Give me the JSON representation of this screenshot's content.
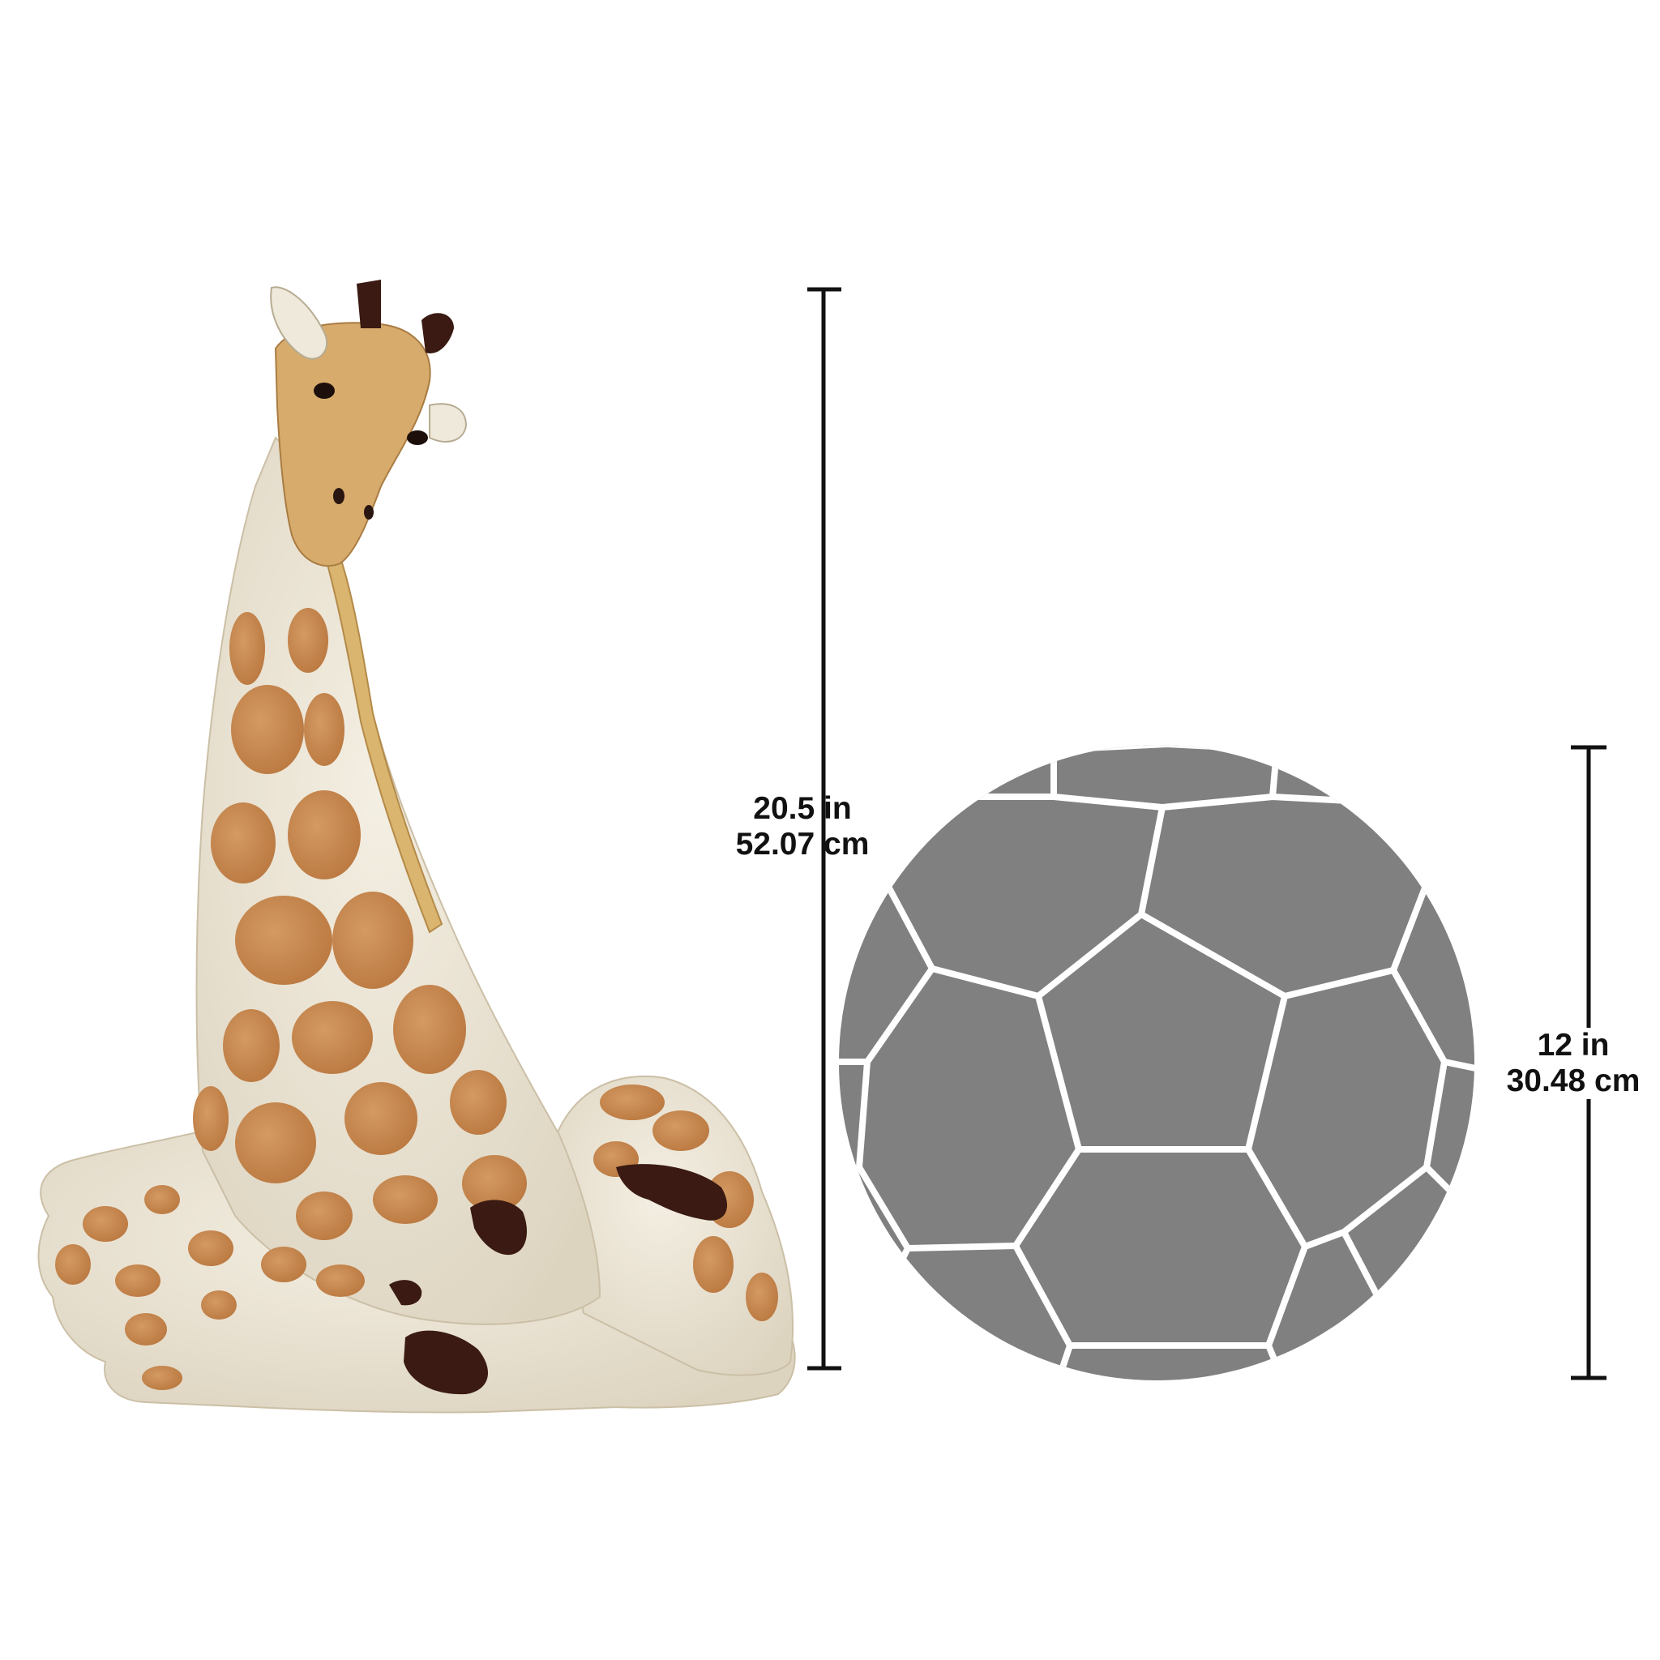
{
  "giraffe_dimension": {
    "imperial": "20.5 in",
    "metric": "52.07 cm"
  },
  "ball_dimension": {
    "imperial": "12 in",
    "metric": "30.48 cm"
  },
  "colors": {
    "background": "#ffffff",
    "ink": "#111111",
    "ball_panel": "#808080",
    "ball_seam": "#ffffff",
    "giraffe_base": "#ece6d6",
    "giraffe_spot": "#c98b52",
    "giraffe_dark": "#3a1a12",
    "giraffe_face": "#d6ab6c"
  },
  "icons": {
    "giraffe": "giraffe-statue-illustration",
    "ball": "soccer-ball-icon"
  }
}
